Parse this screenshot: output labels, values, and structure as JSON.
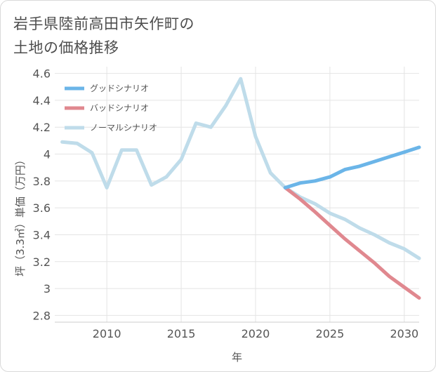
{
  "title_lines": [
    "岩手県陸前高田市矢作町の",
    "土地の価格推移"
  ],
  "chart_data": {
    "type": "line",
    "xlabel": "年",
    "ylabel": "坪（3.3㎡）単価（万円）",
    "xlim": [
      2006.5,
      2031
    ],
    "ylim": [
      2.75,
      4.65
    ],
    "x_ticks": [
      2010,
      2015,
      2020,
      2025,
      2030
    ],
    "y_ticks": [
      2.8,
      3,
      3.2,
      3.4,
      3.6,
      3.8,
      4,
      4.2,
      4.4,
      4.6
    ],
    "x_tick_labels": [
      "2010",
      "2015",
      "2020",
      "2025",
      "2030"
    ],
    "y_tick_labels": [
      "2.8",
      "3",
      "3.2",
      "3.4",
      "3.6",
      "3.8",
      "4",
      "4.2",
      "4.4",
      "4.6"
    ],
    "grid": true,
    "legend_position": "top-left",
    "series": [
      {
        "name": "グッドシナリオ",
        "color": "#6bb5e8",
        "x": [
          2022,
          2023,
          2024,
          2025,
          2026,
          2027,
          2028,
          2029,
          2030,
          2031
        ],
        "y": [
          3.75,
          3.785,
          3.8,
          3.83,
          3.885,
          3.91,
          3.945,
          3.98,
          4.015,
          4.05
        ]
      },
      {
        "name": "バッドシナリオ",
        "color": "#e0888f",
        "x": [
          2022,
          2023,
          2024,
          2025,
          2026,
          2027,
          2028,
          2029,
          2030,
          2031
        ],
        "y": [
          3.75,
          3.665,
          3.57,
          3.47,
          3.37,
          3.28,
          3.19,
          3.09,
          3.01,
          2.93
        ]
      },
      {
        "name": "ノーマルシナリオ",
        "color": "#bfdcea",
        "x": [
          2007,
          2008,
          2009,
          2010,
          2011,
          2012,
          2013,
          2014,
          2015,
          2016,
          2017,
          2018,
          2019,
          2020,
          2021,
          2022,
          2023,
          2024,
          2025,
          2026,
          2027,
          2028,
          2029,
          2030,
          2031
        ],
        "y": [
          4.09,
          4.08,
          4.01,
          3.75,
          4.03,
          4.03,
          3.77,
          3.83,
          3.96,
          4.23,
          4.2,
          4.36,
          4.56,
          4.13,
          3.86,
          3.75,
          3.68,
          3.63,
          3.56,
          3.515,
          3.45,
          3.4,
          3.34,
          3.295,
          3.225
        ]
      }
    ]
  }
}
